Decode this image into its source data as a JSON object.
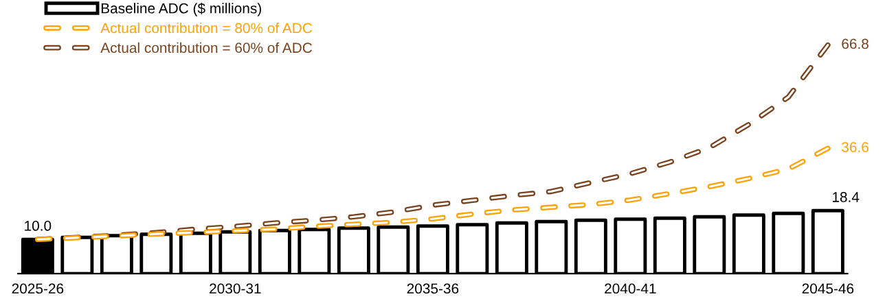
{
  "chart_data": {
    "type": "bar",
    "categories": [
      "2025-26",
      null,
      null,
      null,
      null,
      "2030-31",
      null,
      null,
      null,
      null,
      "2035-36",
      null,
      null,
      null,
      null,
      "2040-41",
      null,
      null,
      null,
      null,
      "2045-46"
    ],
    "series": [
      {
        "name": "Baseline ADC ($ millions)",
        "color": "#000000",
        "colors": [
          "#000000",
          "#ffffff",
          "#ffffff",
          "#ffffff",
          "#ffffff",
          "#ffffff",
          "#ffffff",
          "#ffffff",
          "#ffffff",
          "#ffffff",
          "#ffffff",
          "#ffffff",
          "#ffffff",
          "#ffffff",
          "#ffffff",
          "#ffffff",
          "#ffffff",
          "#ffffff",
          "#ffffff",
          "#ffffff",
          "#ffffff"
        ],
        "values": [
          10.0,
          10.6,
          11.1,
          11.5,
          11.8,
          12.2,
          12.6,
          12.9,
          13.3,
          13.6,
          13.9,
          14.3,
          14.8,
          15.2,
          15.6,
          15.9,
          16.2,
          16.6,
          17.1,
          17.6,
          18.4
        ],
        "value_labels": [
          "10.0",
          null,
          null,
          null,
          null,
          null,
          null,
          null,
          null,
          null,
          null,
          null,
          null,
          null,
          null,
          null,
          null,
          null,
          null,
          null,
          "18.4"
        ]
      },
      {
        "name": "Actual contribution = 80% of ADC",
        "type": "line",
        "color": "#ffa200",
        "line_style": "dashed",
        "values": [
          10.0,
          10.5,
          11.0,
          11.6,
          12.0,
          12.5,
          13.0,
          13.8,
          14.4,
          15.0,
          16.0,
          17.4,
          18.6,
          19.4,
          20.2,
          21.5,
          23.4,
          25.4,
          27.8,
          30.6,
          36.6
        ],
        "value_labels": [
          null,
          null,
          null,
          null,
          null,
          null,
          null,
          null,
          null,
          null,
          null,
          null,
          null,
          null,
          null,
          null,
          null,
          null,
          null,
          null,
          "36.6"
        ]
      },
      {
        "name": "Actual contribution = 60% of ADC",
        "type": "line",
        "color": "#7a431e",
        "line_style": "dashed",
        "values": [
          10.0,
          10.6,
          11.2,
          12.0,
          13.0,
          13.8,
          14.8,
          15.6,
          16.6,
          18.0,
          20.0,
          21.4,
          22.8,
          24.0,
          26.6,
          29.2,
          32.6,
          36.8,
          43.6,
          51.6,
          66.8
        ],
        "value_labels": [
          null,
          null,
          null,
          null,
          null,
          null,
          null,
          null,
          null,
          null,
          null,
          null,
          null,
          null,
          null,
          null,
          null,
          null,
          null,
          null,
          "66.8"
        ]
      }
    ],
    "tick_labels": "x",
    "legend": "top left",
    "grid": false
  }
}
